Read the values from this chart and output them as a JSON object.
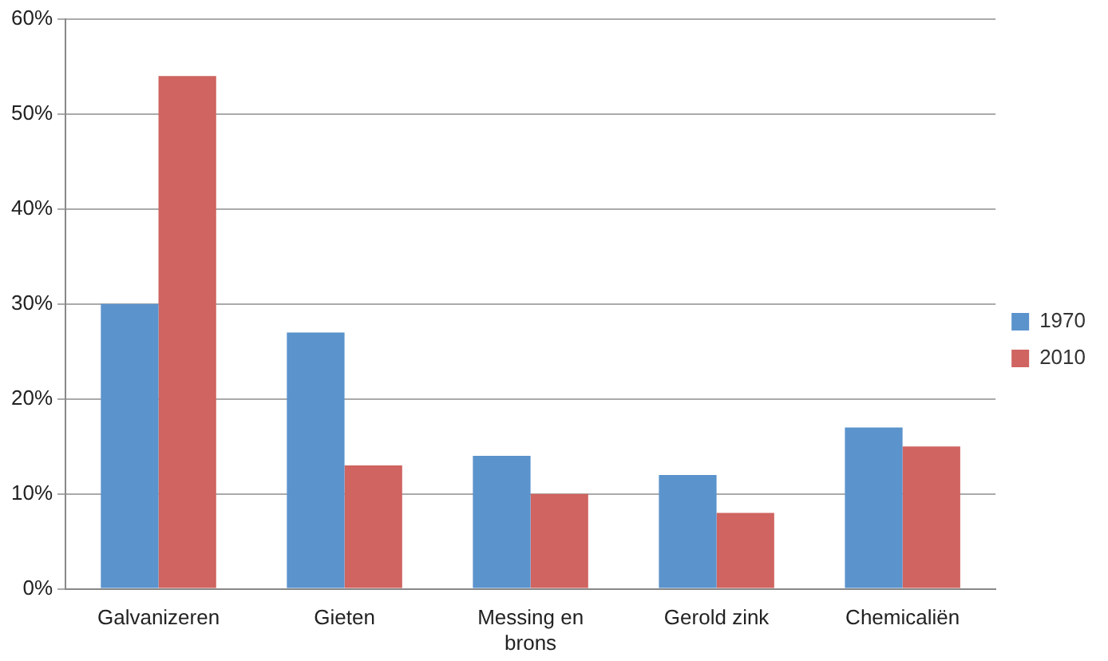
{
  "chart_data": {
    "type": "bar",
    "categories": [
      "Galvanizeren",
      "Gieten",
      "Messing en brons",
      "Gerold zink",
      "Chemicaliën"
    ],
    "series": [
      {
        "name": "1970",
        "color": "#5b93cc",
        "values": [
          30,
          27,
          14,
          12,
          17
        ]
      },
      {
        "name": "2010",
        "color": "#cf6460",
        "values": [
          54,
          13,
          10,
          8,
          15
        ]
      }
    ],
    "ylim": [
      0,
      60
    ],
    "yticks": [
      {
        "value": 0,
        "label": "0%"
      },
      {
        "value": 10,
        "label": "10%"
      },
      {
        "value": 20,
        "label": "20%"
      },
      {
        "value": 30,
        "label": "30%"
      },
      {
        "value": 40,
        "label": "40%"
      },
      {
        "value": 50,
        "label": "50%"
      },
      {
        "value": 60,
        "label": "60%"
      }
    ],
    "grid": "y",
    "legend": "right"
  }
}
